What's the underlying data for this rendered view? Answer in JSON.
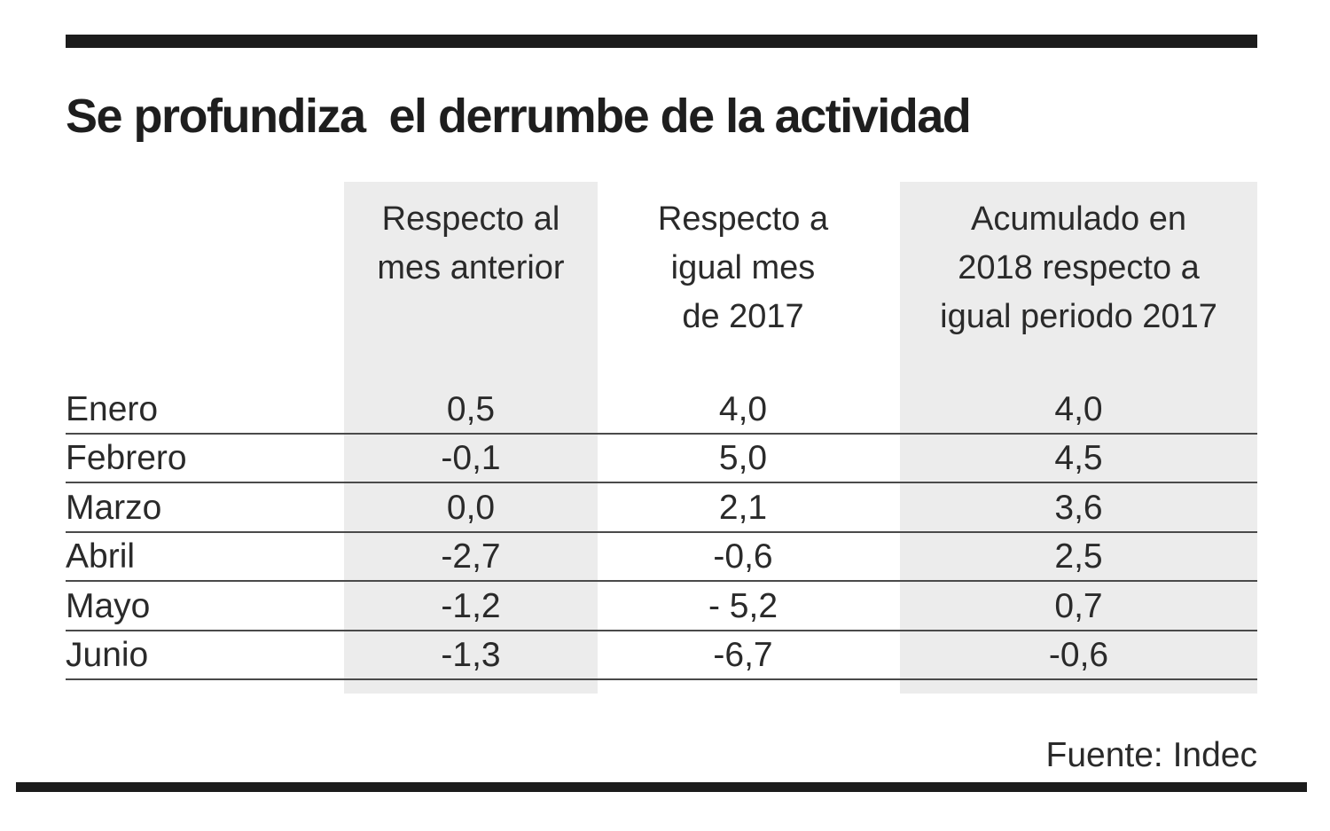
{
  "title": "Se profundiza  el derrumbe de la actividad",
  "source": "Fuente: Indec",
  "colors": {
    "rule": "#1c1c1c",
    "band": "#ececec",
    "text": "#2a2a2a"
  },
  "chart_data": {
    "type": "table",
    "title": "Se profundiza  el derrumbe de la actividad",
    "columns": [
      "Respecto al\nmes anterior",
      "Respecto a\nigual mes\nde 2017",
      "Acumulado en\n2018 respecto a\nigual periodo 2017"
    ],
    "rows": [
      {
        "label": "Enero",
        "values": [
          "0,5",
          "4,0",
          "4,0"
        ]
      },
      {
        "label": "Febrero",
        "values": [
          "-0,1",
          "5,0",
          "4,5"
        ]
      },
      {
        "label": "Marzo",
        "values": [
          "0,0",
          "2,1",
          "3,6"
        ]
      },
      {
        "label": "Abril",
        "values": [
          "-2,7",
          "-0,6",
          "2,5"
        ]
      },
      {
        "label": "Mayo",
        "values": [
          "-1,2",
          "- 5,2",
          "0,7"
        ]
      },
      {
        "label": "Junio",
        "values": [
          "-1,3",
          "-6,7",
          "-0,6"
        ]
      }
    ],
    "source": "Fuente: Indec"
  }
}
